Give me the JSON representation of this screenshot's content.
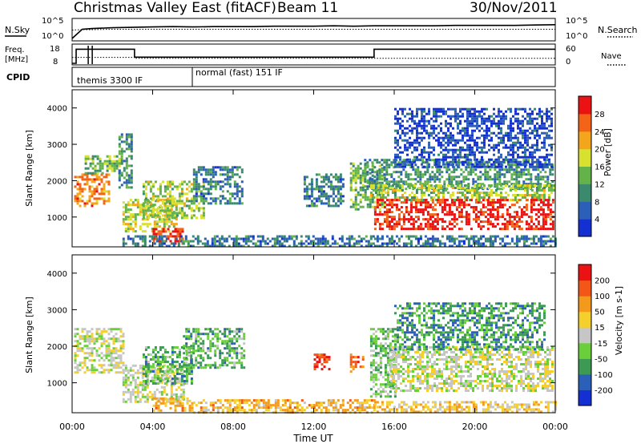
{
  "chart_data": [
    {
      "panel": "header",
      "title": "Christmas Valley East (fitACF)",
      "beam_label": "Beam 11",
      "date": "30/Nov/2011"
    },
    {
      "panel": "noise",
      "type": "line",
      "left_label": "N.Sky",
      "left_ticks": [
        "10^5",
        "10^0"
      ],
      "right_label": "N.Search",
      "right_ticks": [
        "10^5",
        "10^0"
      ],
      "x": [
        0,
        0.5,
        1,
        2,
        3,
        4,
        5,
        6,
        7,
        8,
        9,
        10,
        11,
        12,
        13,
        14,
        15,
        16,
        17,
        18,
        19,
        20,
        21,
        22,
        23,
        24
      ],
      "sky_log": [
        0.2,
        2.6,
        2.8,
        3.0,
        3.1,
        3.2,
        3.3,
        3.2,
        3.3,
        3.3,
        3.3,
        3.4,
        3.4,
        3.4,
        3.5,
        3.4,
        3.5,
        3.5,
        3.5,
        3.5,
        3.6,
        3.6,
        3.6,
        3.6,
        3.7,
        3.8
      ],
      "search_log": [
        2.4,
        2.5,
        2.5,
        2.6,
        2.6,
        2.6,
        2.6,
        2.6,
        2.6,
        2.6,
        2.6,
        2.6,
        2.6,
        2.6,
        2.6,
        2.6,
        2.6,
        2.6,
        2.6,
        2.6,
        2.6,
        2.6,
        2.6,
        2.6,
        2.6,
        2.6
      ]
    },
    {
      "panel": "frequency",
      "type": "line",
      "left_label_top": "Freq.",
      "left_label_bottom": "[MHz]",
      "left_ticks": [
        "18",
        "8"
      ],
      "left_ylim": [
        8,
        18
      ],
      "right_label": "Nave",
      "right_ticks": [
        "60",
        "0"
      ],
      "right_ylim": [
        0,
        60
      ],
      "freq_steps": [
        [
          0,
          8
        ],
        [
          0.2,
          16
        ],
        [
          3.1,
          11.5
        ],
        [
          15.0,
          16
        ],
        [
          24,
          16
        ]
      ],
      "nave_steps": [
        [
          0,
          20
        ],
        [
          3.1,
          17
        ],
        [
          24,
          17
        ]
      ],
      "spikes_x": [
        0.8,
        1.0
      ]
    },
    {
      "panel": "cpid",
      "label": "CPID",
      "segments": [
        {
          "start": 0,
          "end": 6.0,
          "text": "themis 3300 IF"
        },
        {
          "start": 6.0,
          "end": 24,
          "text": "normal (fast) 151 IF"
        }
      ]
    },
    {
      "panel": "power",
      "type": "heatmap",
      "ylabel": "Slant Range [km]",
      "yticks": [
        "1000",
        "2000",
        "3000",
        "4000"
      ],
      "ylim": [
        180,
        4500
      ],
      "xlim": [
        0,
        24
      ],
      "colorbar_label": "Power [dB]",
      "colorbar_ticks": [
        "4",
        "8",
        "12",
        "16",
        "20",
        "24",
        "28"
      ],
      "colorbar_range": [
        0,
        32
      ],
      "colors": [
        "#1430d2",
        "#2c5fb8",
        "#3c8a6e",
        "#63b34a",
        "#d8e030",
        "#f3a51c",
        "#f36418",
        "#ea1212"
      ],
      "regions": [
        {
          "t0": 0.1,
          "t1": 1.8,
          "r0": 1300,
          "r1": 2200,
          "level": 5.5
        },
        {
          "t0": 0.5,
          "t1": 2.5,
          "r0": 2200,
          "r1": 2700,
          "level": 3
        },
        {
          "t0": 2.3,
          "t1": 3.0,
          "r0": 1800,
          "r1": 3300,
          "level": 2
        },
        {
          "t0": 2.5,
          "t1": 5.2,
          "r0": 600,
          "r1": 1500,
          "level": 4
        },
        {
          "t0": 3.5,
          "t1": 6.5,
          "r0": 1000,
          "r1": 2000,
          "level": 3.5
        },
        {
          "t0": 4.0,
          "t1": 5.5,
          "r0": 300,
          "r1": 700,
          "level": 6.5
        },
        {
          "t0": 6.0,
          "t1": 8.5,
          "r0": 1400,
          "r1": 2400,
          "level": 1.5
        },
        {
          "t0": 2.5,
          "t1": 15.0,
          "r0": 180,
          "r1": 500,
          "level": 1.5
        },
        {
          "t0": 11.5,
          "t1": 13.5,
          "r0": 1300,
          "r1": 2200,
          "level": 1.5
        },
        {
          "t0": 13.8,
          "t1": 15.5,
          "r0": 1200,
          "r1": 2500,
          "level": 3
        },
        {
          "t0": 14.5,
          "t1": 23.9,
          "r0": 1800,
          "r1": 2600,
          "level": 2.2
        },
        {
          "t0": 14.8,
          "t1": 23.9,
          "r0": 1500,
          "r1": 1900,
          "level": 3.5
        },
        {
          "t0": 15.0,
          "t1": 23.9,
          "r0": 700,
          "r1": 1500,
          "level": 7
        },
        {
          "t0": 15.0,
          "t1": 24.0,
          "r0": 180,
          "r1": 500,
          "level": 1.5
        },
        {
          "t0": 16.0,
          "t1": 23.8,
          "r0": 2400,
          "r1": 4000,
          "level": 0.5
        }
      ]
    },
    {
      "panel": "velocity",
      "type": "heatmap",
      "ylabel": "Slant Range [km]",
      "yticks": [
        "1000",
        "2000",
        "3000",
        "4000"
      ],
      "ylim": [
        180,
        4500
      ],
      "xlim": [
        0,
        24
      ],
      "xticks": [
        "00:00",
        "04:00",
        "08:00",
        "12:00",
        "16:00",
        "20:00",
        "00:00"
      ],
      "xlabel": "Time UT",
      "colorbar_label": "Velocity [m s-1]",
      "colorbar_ticks": [
        "200",
        "100",
        "50",
        "15",
        "-15",
        "-50",
        "-100",
        "-200"
      ],
      "colorbar_range": [
        -250,
        250
      ],
      "colors": [
        "#ea1212",
        "#f35718",
        "#f39a1c",
        "#f5cf2c",
        "#c6c6c6",
        "#6bcf3c",
        "#3c9a55",
        "#2c5fb8",
        "#1430d2"
      ],
      "regions": [
        {
          "t0": 0.1,
          "t1": 2.6,
          "r0": 1300,
          "r1": 2500,
          "level": 4
        },
        {
          "t0": 2.5,
          "t1": 5.5,
          "r0": 500,
          "r1": 1500,
          "level": 4
        },
        {
          "t0": 3.5,
          "t1": 6.0,
          "r0": 1000,
          "r1": 2000,
          "level": 5.5
        },
        {
          "t0": 5.5,
          "t1": 8.5,
          "r0": 1400,
          "r1": 2500,
          "level": 5.5
        },
        {
          "t0": 4.0,
          "t1": 6.0,
          "r0": 250,
          "r1": 600,
          "level": 2.5
        },
        {
          "t0": 6.0,
          "t1": 15.0,
          "r0": 180,
          "r1": 550,
          "level": 2.5
        },
        {
          "t0": 12.0,
          "t1": 12.8,
          "r0": 1400,
          "r1": 1800,
          "level": 0.5
        },
        {
          "t0": 13.8,
          "t1": 14.5,
          "r0": 1300,
          "r1": 1800,
          "level": 1.5
        },
        {
          "t0": 14.8,
          "t1": 16.0,
          "r0": 600,
          "r1": 2500,
          "level": 5
        },
        {
          "t0": 15.8,
          "t1": 23.9,
          "r0": 800,
          "r1": 2000,
          "level": 4
        },
        {
          "t0": 15.0,
          "t1": 24.0,
          "r0": 180,
          "r1": 500,
          "level": 3
        },
        {
          "t0": 16.0,
          "t1": 23.5,
          "r0": 1900,
          "r1": 3200,
          "level": 6
        }
      ]
    }
  ]
}
